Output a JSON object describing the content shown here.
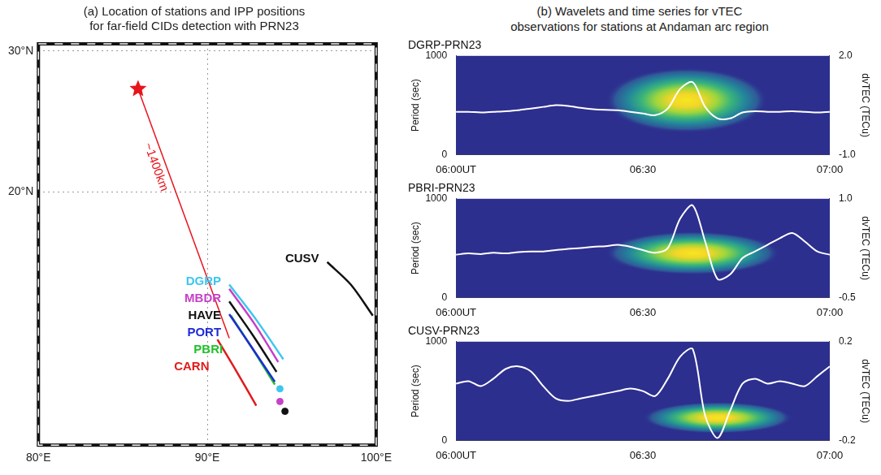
{
  "chart_data": [
    {
      "type": "map",
      "title": [
        "(a) Location of stations and IPP positions",
        "for far-field CIDs detection with PRN23"
      ],
      "xlim": [
        80,
        100
      ],
      "ylim": [
        2,
        30.5
      ],
      "xticks": [
        {
          "value": 80,
          "label": "80°E"
        },
        {
          "value": 90,
          "label": "90°E"
        },
        {
          "value": 100,
          "label": "100°E"
        }
      ],
      "yticks": [
        {
          "value": 20,
          "label": "20°N"
        },
        {
          "value": 30,
          "label": "30°N"
        }
      ],
      "grid": true,
      "epicenter": {
        "lon": 85.9,
        "lat": 27.3,
        "color": "#e8141c",
        "marker": "star"
      },
      "distance_line": {
        "lon": [
          85.9,
          91.3
        ],
        "lat": [
          27.3,
          9.6
        ],
        "label": "~1400km",
        "color": "#e8141c"
      },
      "tracks": [
        {
          "name": "DGRP",
          "color": "#3ec6f0",
          "lon": [
            91.3,
            92.9,
            94.5
          ],
          "lat": [
            13.4,
            10.9,
            8.1
          ]
        },
        {
          "name": "MBDR",
          "color": "#c640c8",
          "lon": [
            91.3,
            92.8,
            94.2
          ],
          "lat": [
            13.1,
            10.6,
            7.9
          ]
        },
        {
          "name": "HAVE",
          "color": "#111111",
          "lon": [
            91.3,
            92.7,
            94.1
          ],
          "lat": [
            12.2,
            9.8,
            7.2
          ]
        },
        {
          "name": "PORT",
          "color": "#1f2bd6",
          "lon": [
            91.3,
            92.6,
            94.0
          ],
          "lat": [
            11.3,
            9.0,
            6.5
          ]
        },
        {
          "name": "PBRI",
          "color": "#22c02c",
          "lon": [
            91.4,
            92.7,
            94.0
          ],
          "lat": [
            11.2,
            8.8,
            6.3
          ]
        },
        {
          "name": "CARN",
          "color": "#e01b1b",
          "lon": [
            90.6,
            91.7,
            92.9
          ],
          "lat": [
            9.5,
            7.3,
            4.8
          ]
        },
        {
          "name": "CUSV",
          "color": "#111111",
          "lon": [
            97.1,
            98.5,
            99.8
          ],
          "lat": [
            15.0,
            13.4,
            11.2
          ]
        }
      ],
      "stations": [
        {
          "lon": 94.3,
          "lat": 6.0,
          "color": "#3ec6f0"
        },
        {
          "lon": 94.3,
          "lat": 5.1,
          "color": "#c640c8"
        },
        {
          "lon": 94.6,
          "lat": 4.4,
          "color": "#111111"
        }
      ]
    },
    {
      "type": "wavelet_group",
      "title": [
        "(b) Wavelets and time series for vTEC",
        "observations for stations at Andaman arc region"
      ],
      "charts": [
        {
          "type": "line",
          "title": "DGRP-PRN23",
          "x": [
            0,
            2,
            4,
            6,
            8,
            10,
            12,
            14,
            16,
            18,
            20,
            22,
            24,
            26,
            28,
            30,
            32,
            34,
            36,
            38,
            40,
            42,
            44,
            46,
            48,
            50,
            52,
            54,
            56,
            58,
            60
          ],
          "series": [
            {
              "color": "#ffffff",
              "axis": "y2",
              "values": [
                0.3,
                0.3,
                0.28,
                0.3,
                0.32,
                0.35,
                0.4,
                0.45,
                0.5,
                0.48,
                0.42,
                0.38,
                0.36,
                0.35,
                0.3,
                0.25,
                0.2,
                0.4,
                1.0,
                1.2,
                0.45,
                0.1,
                0.1,
                0.28,
                0.32,
                0.3,
                0.3,
                0.32,
                0.3,
                0.28,
                0.3
              ]
            }
          ],
          "xlim": [
            0,
            60
          ],
          "xticks": [
            {
              "value": 0,
              "label": "06:00UT"
            },
            {
              "value": 30,
              "label": "06:30"
            },
            {
              "value": 60,
              "label": "07:00"
            }
          ],
          "ylim": [
            0,
            1000
          ],
          "yticks": [
            0,
            1000
          ],
          "ylabel": "Period (sec)",
          "y2lim": [
            -1,
            2
          ],
          "y2ticks": [
            {
              "value": -1,
              "label": "-1.0"
            },
            {
              "value": 2,
              "label": "2.0"
            }
          ],
          "y2label": "dvTEC (TECu)",
          "wavelet": {
            "peak_time": 37,
            "peak_period": 550,
            "time_halfwidth": 13,
            "period_halfwidth": 330
          }
        },
        {
          "type": "line",
          "title": "PBRI-PRN23",
          "x": [
            0,
            2,
            4,
            6,
            8,
            10,
            12,
            14,
            16,
            18,
            20,
            22,
            24,
            26,
            28,
            30,
            32,
            34,
            36,
            38,
            40,
            42,
            44,
            46,
            48,
            50,
            52,
            54,
            56,
            58,
            60
          ],
          "series": [
            {
              "color": "#ffffff",
              "axis": "y2",
              "values": [
                0.15,
                0.17,
                0.16,
                0.18,
                0.17,
                0.19,
                0.2,
                0.2,
                0.22,
                0.24,
                0.25,
                0.27,
                0.28,
                0.3,
                0.27,
                0.22,
                0.18,
                0.25,
                0.7,
                0.9,
                0.35,
                -0.22,
                -0.15,
                0.1,
                0.2,
                0.3,
                0.4,
                0.48,
                0.35,
                0.2,
                0.15
              ]
            }
          ],
          "xlim": [
            0,
            60
          ],
          "xticks": [
            {
              "value": 0,
              "label": "06:00UT"
            },
            {
              "value": 30,
              "label": "06:30"
            },
            {
              "value": 60,
              "label": "07:00"
            }
          ],
          "ylim": [
            0,
            1000
          ],
          "yticks": [
            0,
            1000
          ],
          "ylabel": "Period (sec)",
          "y2lim": [
            -0.5,
            1
          ],
          "y2ticks": [
            -0.5,
            {
              "value": 1,
              "label": "1.0"
            }
          ],
          "y2label": "dvTEC (TECu)",
          "wavelet": {
            "peak_time": 38,
            "peak_period": 450,
            "time_halfwidth": 14,
            "period_halfwidth": 220
          }
        },
        {
          "type": "line",
          "title": "CUSV-PRN23",
          "x": [
            0,
            2,
            4,
            6,
            8,
            10,
            12,
            14,
            16,
            18,
            20,
            22,
            24,
            26,
            28,
            30,
            32,
            34,
            36,
            38,
            40,
            42,
            44,
            46,
            48,
            50,
            52,
            54,
            56,
            58,
            60
          ],
          "series": [
            {
              "color": "#ffffff",
              "axis": "y2",
              "values": [
                0.03,
                0.04,
                0.02,
                0.05,
                0.09,
                0.1,
                0.08,
                0.02,
                -0.03,
                -0.04,
                -0.03,
                -0.02,
                -0.01,
                0.0,
                0.01,
                0.0,
                -0.02,
                0.05,
                0.14,
                0.17,
                -0.1,
                -0.19,
                -0.08,
                0.03,
                0.05,
                0.03,
                0.04,
                0.03,
                0.02,
                0.06,
                0.1
              ]
            }
          ],
          "xlim": [
            0,
            60
          ],
          "xticks": [
            {
              "value": 0,
              "label": "06:00UT"
            },
            {
              "value": 30,
              "label": "06:30"
            },
            {
              "value": 60,
              "label": "07:00"
            }
          ],
          "ylim": [
            0,
            1000
          ],
          "yticks": [
            0,
            1000
          ],
          "ylabel": "Period (sec)",
          "y2lim": [
            -0.2,
            0.2
          ],
          "y2ticks": [
            -0.2,
            0.2
          ],
          "y2label": "dvTEC (TECu)",
          "wavelet": {
            "peak_time": 42,
            "peak_period": 230,
            "time_halfwidth": 12,
            "period_halfwidth": 160
          }
        }
      ]
    }
  ]
}
